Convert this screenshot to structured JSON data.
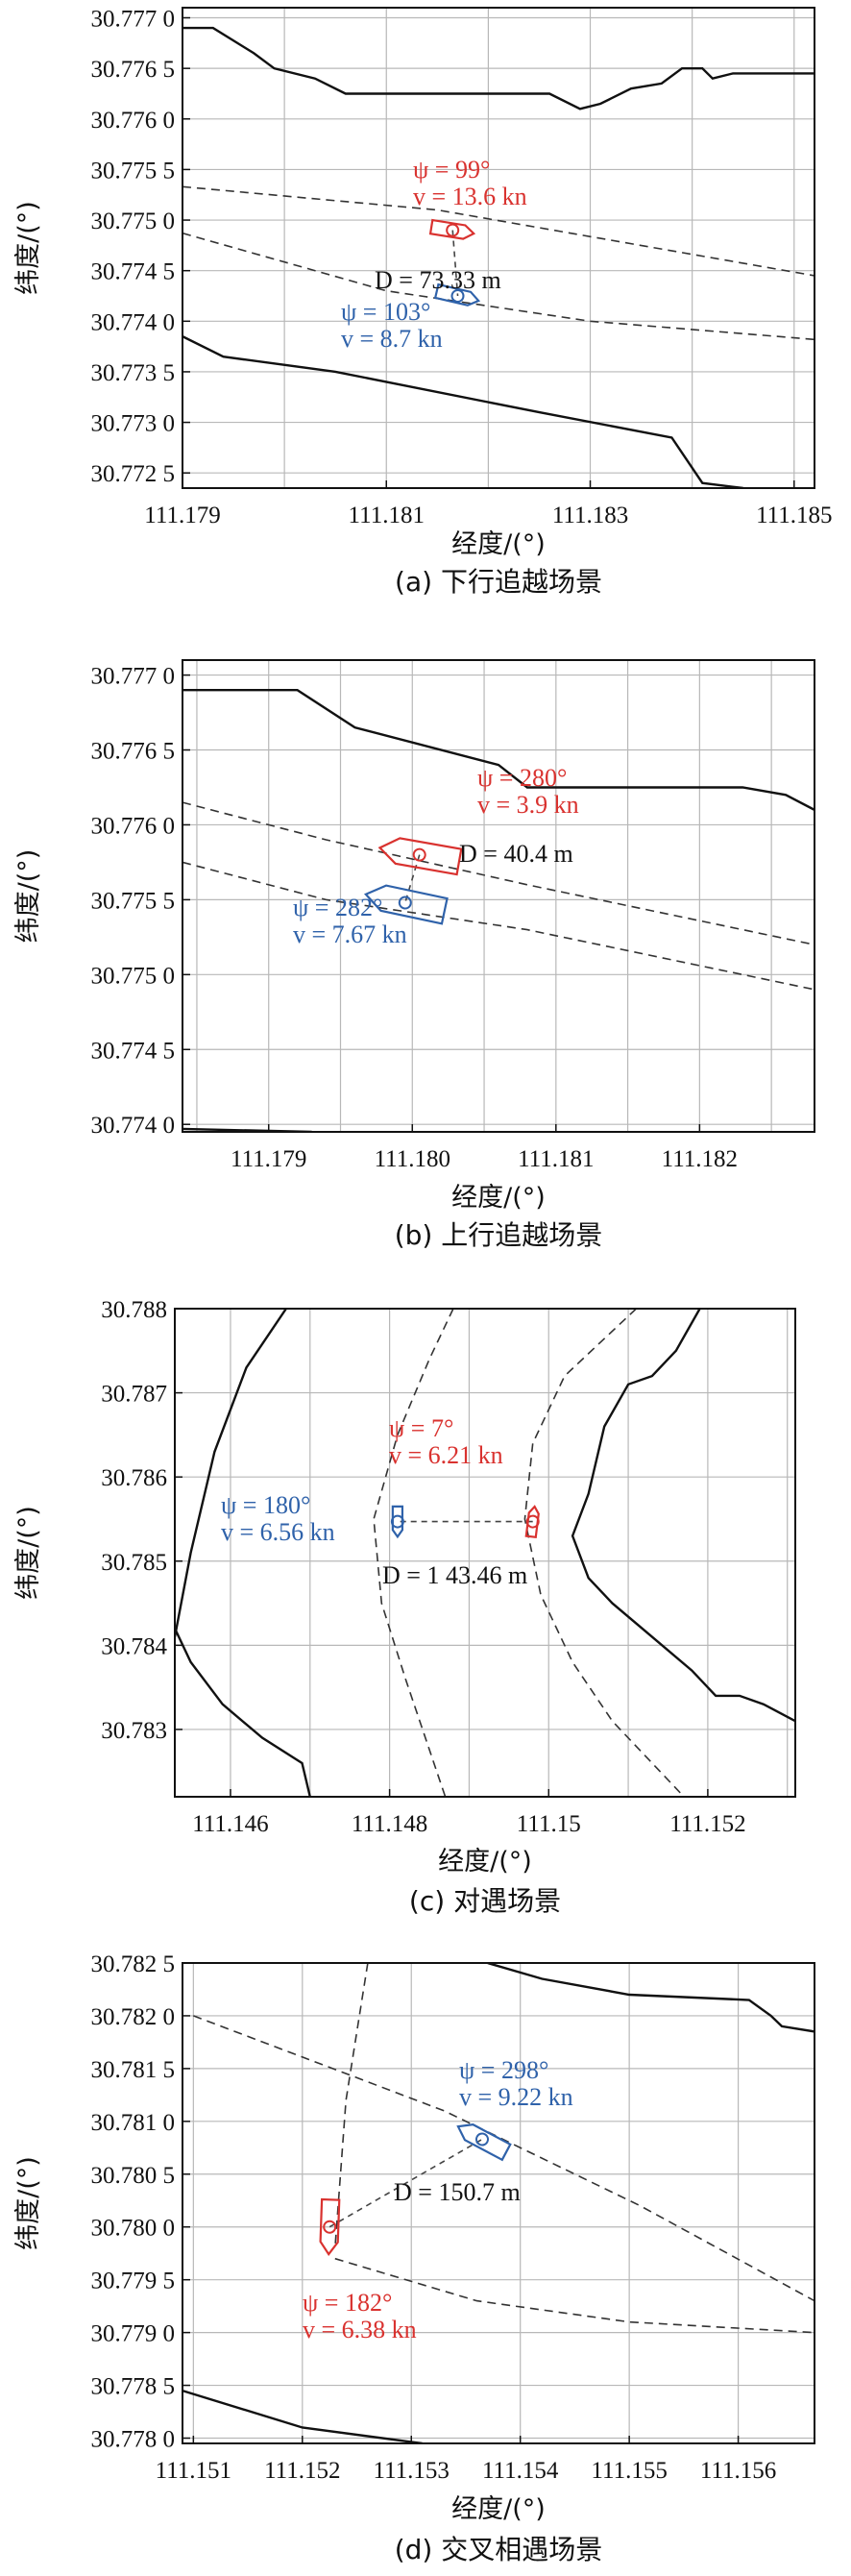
{
  "chart_data": [
    {
      "type": "map-trajectory",
      "caption": "(a) 下行追越场景",
      "xlabel": "经度/(°)",
      "ylabel": "纬度/(°)",
      "xlim": [
        111.179,
        111.1852
      ],
      "ylim": [
        30.77235,
        30.7771
      ],
      "xticks": [
        111.179,
        111.181,
        111.183,
        111.185
      ],
      "xtick_labels": [
        "111.179",
        "111.181",
        "111.183",
        "111.185"
      ],
      "xgrid": [
        111.179,
        111.18,
        111.181,
        111.182,
        111.183,
        111.184,
        111.185
      ],
      "yticks": [
        30.7725,
        30.773,
        30.7735,
        30.774,
        30.7745,
        30.775,
        30.7755,
        30.776,
        30.7765,
        30.777
      ],
      "ytick_labels": [
        "30.772 5",
        "30.773 0",
        "30.773 5",
        "30.774 0",
        "30.774 5",
        "30.775 0",
        "30.775 5",
        "30.776 0",
        "30.776 5",
        "30.777 0"
      ],
      "shorelines": [
        [
          [
            111.179,
            30.7769
          ],
          [
            111.1793,
            30.7769
          ],
          [
            111.1797,
            30.77665
          ],
          [
            111.1799,
            30.7765
          ],
          [
            111.1803,
            30.7764
          ],
          [
            111.1806,
            30.77625
          ],
          [
            111.1826,
            30.77625
          ],
          [
            111.1829,
            30.7761
          ],
          [
            111.1831,
            30.77615
          ],
          [
            111.1834,
            30.7763
          ],
          [
            111.1837,
            30.77635
          ],
          [
            111.1839,
            30.7765
          ],
          [
            111.1841,
            30.7765
          ],
          [
            111.1842,
            30.7764
          ],
          [
            111.1844,
            30.77645
          ],
          [
            111.1852,
            30.77645
          ]
        ],
        [
          [
            111.179,
            30.77385
          ],
          [
            111.1794,
            30.77365
          ],
          [
            111.1805,
            30.7735
          ],
          [
            111.1825,
            30.7731
          ],
          [
            111.1838,
            30.77285
          ],
          [
            111.1841,
            30.7724
          ],
          [
            111.1845,
            30.77235
          ]
        ]
      ],
      "routes": [
        [
          [
            111.179,
            30.77533
          ],
          [
            111.1815,
            30.7751
          ],
          [
            111.1852,
            30.77445
          ]
        ],
        [
          [
            111.179,
            30.77487
          ],
          [
            111.181,
            30.7743
          ],
          [
            111.183,
            30.774
          ],
          [
            111.1852,
            30.77382
          ]
        ]
      ],
      "ships": [
        {
          "color": "#d9322f",
          "x": 111.18165,
          "y": 30.7749,
          "heading": 99,
          "size": 0.00042,
          "label_psi": "ψ = 99°",
          "label_v": "v = 13.6 kn",
          "label_pos": "top"
        },
        {
          "color": "#2f62aa",
          "x": 111.1817,
          "y": 30.77425,
          "heading": 103,
          "size": 0.00042,
          "label_psi": "ψ = 103°",
          "label_v": "v = 8.7 kn",
          "label_pos": "bottom-left"
        }
      ],
      "distance_label": "D = 73.33 m"
    },
    {
      "type": "map-trajectory",
      "caption": "(b) 上行追越场景",
      "xlabel": "经度/(°)",
      "ylabel": "纬度/(°)",
      "xlim": [
        111.1784,
        111.1828
      ],
      "ylim": [
        30.77395,
        30.7771
      ],
      "xticks": [
        111.179,
        111.18,
        111.181,
        111.182
      ],
      "xtick_labels": [
        "111.179",
        "111.180",
        "111.181",
        "111.182"
      ],
      "xgrid": [
        111.1785,
        111.179,
        111.1795,
        111.18,
        111.1805,
        111.181,
        111.1815,
        111.182,
        111.1825
      ],
      "yticks": [
        30.774,
        30.7745,
        30.775,
        30.7755,
        30.776,
        30.7765,
        30.777
      ],
      "ytick_labels": [
        "30.774 0",
        "30.774 5",
        "30.775 0",
        "30.775 5",
        "30.776 0",
        "30.776 5",
        "30.777 0"
      ],
      "shorelines": [
        [
          [
            111.1784,
            30.7769
          ],
          [
            111.1792,
            30.7769
          ],
          [
            111.1796,
            30.77665
          ],
          [
            111.1806,
            30.7764
          ],
          [
            111.1808,
            30.77625
          ],
          [
            111.1823,
            30.77625
          ],
          [
            111.1826,
            30.7762
          ],
          [
            111.1828,
            30.7761
          ]
        ],
        [
          [
            111.1784,
            30.77397
          ],
          [
            111.1793,
            30.77395
          ]
        ]
      ],
      "routes": [
        [
          [
            111.1784,
            30.77615
          ],
          [
            111.1794,
            30.7759
          ],
          [
            111.1808,
            30.7756
          ],
          [
            111.1828,
            30.7752
          ]
        ],
        [
          [
            111.1784,
            30.77575
          ],
          [
            111.1794,
            30.7755
          ],
          [
            111.1808,
            30.7753
          ],
          [
            111.1828,
            30.7749
          ]
        ]
      ],
      "ships": [
        {
          "color": "#d9322f",
          "x": 111.18005,
          "y": 30.7758,
          "heading": 280,
          "size": 0.00056,
          "label_psi": "ψ = 280°",
          "label_v": "v = 3.9 kn",
          "label_pos": "top-right"
        },
        {
          "color": "#2f62aa",
          "x": 111.17995,
          "y": 30.77548,
          "heading": 282,
          "size": 0.00056,
          "label_psi": "ψ = 282°",
          "label_v": "v = 7.67 kn",
          "label_pos": "bottom-left"
        }
      ],
      "distance_label": "D = 40.4 m"
    },
    {
      "type": "map-trajectory",
      "caption": "(c) 对遇场景",
      "xlabel": "经度/(°)",
      "ylabel": "纬度/(°)",
      "xlim": [
        111.1453,
        111.1531
      ],
      "ylim": [
        30.7822,
        30.788
      ],
      "xticks": [
        111.146,
        111.148,
        111.15,
        111.152
      ],
      "xtick_labels": [
        "111.146",
        "111.148",
        "111.15",
        "111.152"
      ],
      "xgrid": [
        111.146,
        111.147,
        111.148,
        111.149,
        111.15,
        111.151,
        111.152,
        111.153
      ],
      "yticks": [
        30.783,
        30.784,
        30.785,
        30.786,
        30.787,
        30.788
      ],
      "ytick_labels": [
        "30.783",
        "30.784",
        "30.785",
        "30.786",
        "30.787",
        "30.788"
      ],
      "shorelines": [
        [
          [
            111.1467,
            30.788
          ],
          [
            111.1462,
            30.7873
          ],
          [
            111.1458,
            30.7863
          ],
          [
            111.1455,
            30.7851
          ],
          [
            111.1453,
            30.7841
          ]
        ],
        [
          [
            111.1453,
            30.7842
          ],
          [
            111.1455,
            30.7838
          ],
          [
            111.1459,
            30.7833
          ],
          [
            111.1464,
            30.7829
          ],
          [
            111.1469,
            30.7826
          ],
          [
            111.147,
            30.7822
          ]
        ],
        [
          [
            111.1519,
            30.788
          ],
          [
            111.1516,
            30.7875
          ],
          [
            111.1513,
            30.7872
          ],
          [
            111.151,
            30.7871
          ],
          [
            111.1507,
            30.7866
          ],
          [
            111.1505,
            30.7858
          ],
          [
            111.1503,
            30.7853
          ],
          [
            111.1505,
            30.7848
          ],
          [
            111.1508,
            30.7845
          ],
          [
            111.1513,
            30.7841
          ],
          [
            111.1518,
            30.7837
          ],
          [
            111.1521,
            30.7834
          ],
          [
            111.1524,
            30.7834
          ],
          [
            111.1527,
            30.7833
          ],
          [
            111.1529,
            30.7832
          ],
          [
            111.1531,
            30.7831
          ]
        ]
      ],
      "routes": [
        [
          [
            111.1488,
            30.788
          ],
          [
            111.1485,
            30.7874
          ],
          [
            111.1481,
            30.7865
          ],
          [
            111.1478,
            30.7855
          ],
          [
            111.1479,
            30.7845
          ],
          [
            111.1482,
            30.7836
          ],
          [
            111.1487,
            30.7822
          ]
        ],
        [
          [
            111.1511,
            30.788
          ],
          [
            111.1502,
            30.7872
          ],
          [
            111.1498,
            30.7864
          ],
          [
            111.1497,
            30.7855
          ],
          [
            111.1499,
            30.7846
          ],
          [
            111.1503,
            30.7838
          ],
          [
            111.1508,
            30.7831
          ],
          [
            111.1517,
            30.7822
          ]
        ]
      ],
      "ships": [
        {
          "color": "#d9322f",
          "x": 111.1498,
          "y": 30.78547,
          "heading": 7,
          "size": 0.00038,
          "label_psi": "ψ = 7°",
          "label_v": "v = 6.21 kn",
          "label_pos": "top"
        },
        {
          "color": "#2f62aa",
          "x": 111.1481,
          "y": 30.78547,
          "heading": 180,
          "size": 0.00038,
          "label_psi": "ψ = 180°",
          "label_v": "v = 6.56 kn",
          "label_pos": "left"
        }
      ],
      "distance_label": "D = 1 43.46 m"
    },
    {
      "type": "map-trajectory",
      "caption": "(d) 交叉相遇场景",
      "xlabel": "经度/(°)",
      "ylabel": "纬度/(°)",
      "xlim": [
        111.1509,
        111.1567
      ],
      "ylim": [
        30.77795,
        30.7825
      ],
      "xticks": [
        111.151,
        111.152,
        111.153,
        111.154,
        111.155,
        111.156
      ],
      "xtick_labels": [
        "111.151",
        "111.152",
        "111.153",
        "111.154",
        "111.155",
        "111.156"
      ],
      "xgrid": [
        111.151,
        111.152,
        111.153,
        111.154,
        111.155,
        111.156
      ],
      "yticks": [
        30.778,
        30.7785,
        30.779,
        30.7795,
        30.78,
        30.7805,
        30.781,
        30.7815,
        30.782,
        30.7825
      ],
      "ytick_labels": [
        "30.778 0",
        "30.778 5",
        "30.779 0",
        "30.779 5",
        "30.780 0",
        "30.780 5",
        "30.781 0",
        "30.781 5",
        "30.782 0",
        "30.782 5"
      ],
      "shorelines": [
        [
          [
            111.1537,
            30.7825
          ],
          [
            111.1542,
            30.78235
          ],
          [
            111.155,
            30.7822
          ],
          [
            111.1561,
            30.78215
          ],
          [
            111.1563,
            30.782
          ],
          [
            111.1564,
            30.7819
          ],
          [
            111.1567,
            30.78185
          ]
        ],
        [
          [
            111.1509,
            30.77845
          ],
          [
            111.152,
            30.7781
          ],
          [
            111.1531,
            30.77795
          ]
        ]
      ],
      "routes": [
        [
          [
            111.151,
            30.782
          ],
          [
            111.1533,
            30.7811
          ],
          [
            111.1551,
            30.7802
          ],
          [
            111.1567,
            30.7793
          ]
        ],
        [
          [
            111.1523,
            30.7797
          ],
          [
            111.1536,
            30.7793
          ],
          [
            111.155,
            30.7791
          ],
          [
            111.1567,
            30.779
          ]
        ],
        [
          [
            111.1526,
            30.7825
          ],
          [
            111.1524,
            30.7812
          ],
          [
            111.1523,
            30.7798
          ]
        ]
      ],
      "ships": [
        {
          "color": "#d9322f",
          "x": 111.15225,
          "y": 30.78,
          "heading": 182,
          "size": 0.0005,
          "label_psi": "ψ = 182°",
          "label_v": "v = 6.38 kn",
          "label_pos": "bottom"
        },
        {
          "color": "#2f62aa",
          "x": 111.15365,
          "y": 30.78083,
          "heading": 298,
          "size": 0.0005,
          "label_psi": "ψ = 298°",
          "label_v": "v = 9.22 kn",
          "label_pos": "top-right"
        }
      ],
      "distance_label": "D = 150.7 m"
    }
  ]
}
